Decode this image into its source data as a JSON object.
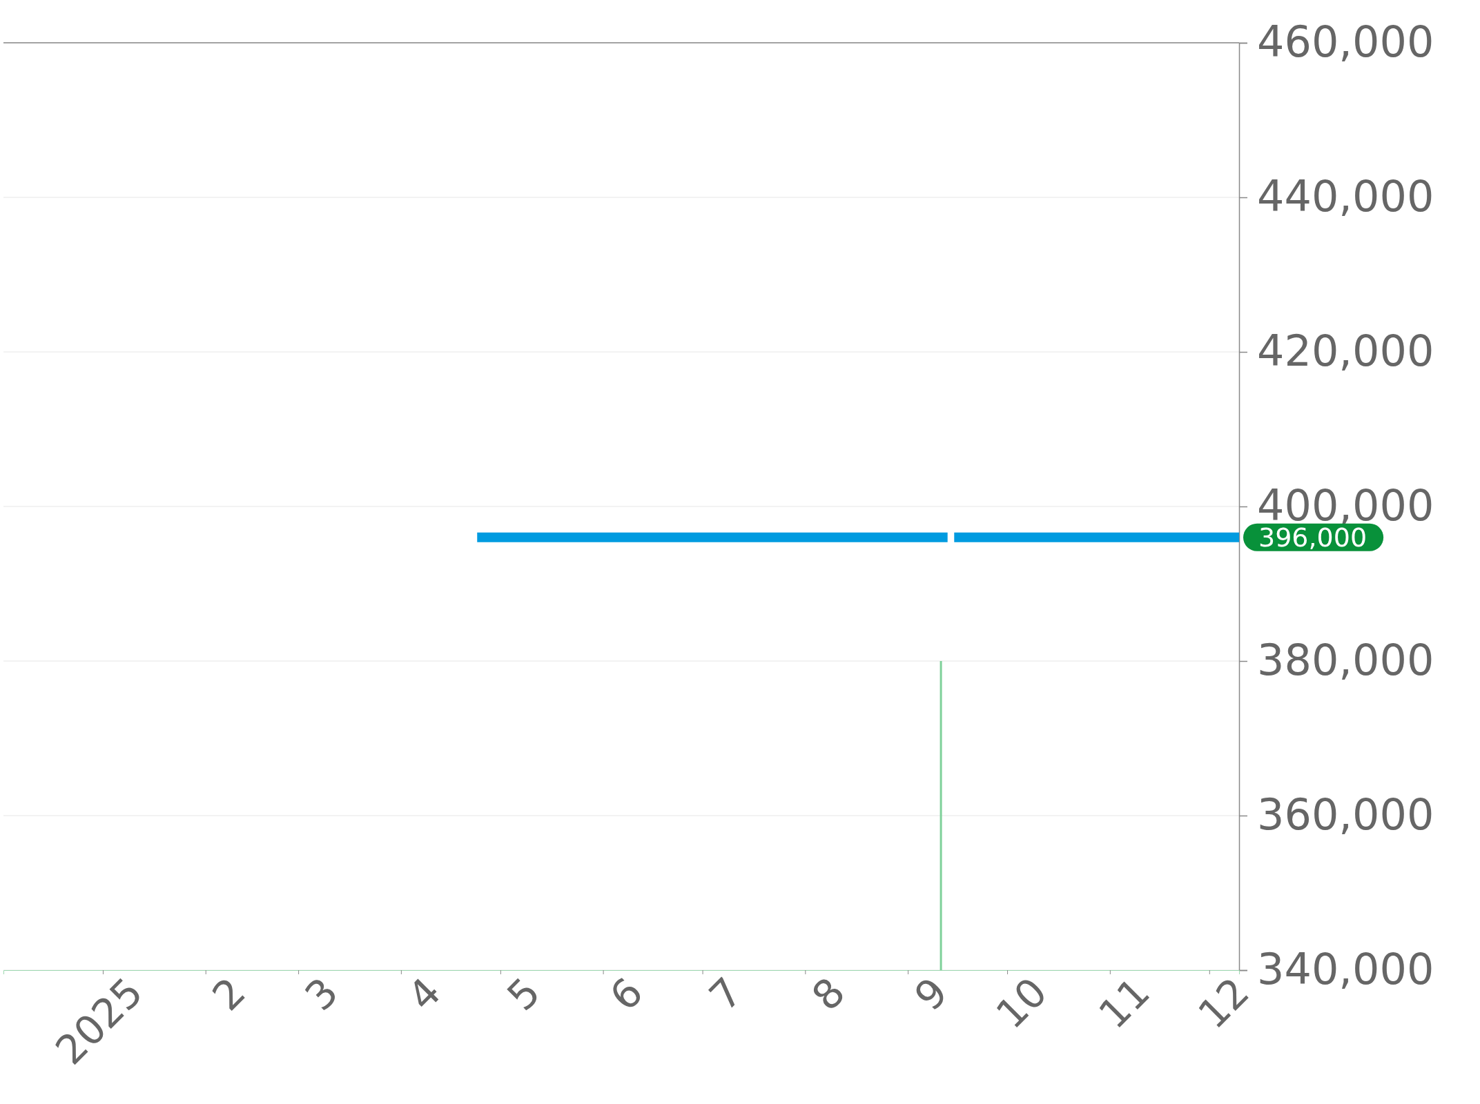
{
  "chart_data": {
    "type": "line",
    "xlim": [
      "2024-12-02",
      "2025-12-10"
    ],
    "xticks": [
      {
        "value": "2025-01-01",
        "label": "2025"
      },
      {
        "value": "2025-02-01",
        "label": "2"
      },
      {
        "value": "2025-03-01",
        "label": "3"
      },
      {
        "value": "2025-04-01",
        "label": "4"
      },
      {
        "value": "2025-05-01",
        "label": "5"
      },
      {
        "value": "2025-06-01",
        "label": "6"
      },
      {
        "value": "2025-07-01",
        "label": "7"
      },
      {
        "value": "2025-08-01",
        "label": "8"
      },
      {
        "value": "2025-09-01",
        "label": "9"
      },
      {
        "value": "2025-10-01",
        "label": "10"
      },
      {
        "value": "2025-11-01",
        "label": "11"
      },
      {
        "value": "2025-12-01",
        "label": "12"
      }
    ],
    "ylim": [
      340000,
      460000
    ],
    "yticks": [
      {
        "value": 340000,
        "label": "340,000"
      },
      {
        "value": 360000,
        "label": "360,000"
      },
      {
        "value": 380000,
        "label": "380,000"
      },
      {
        "value": 400000,
        "label": "400,000"
      },
      {
        "value": 420000,
        "label": "420,000"
      },
      {
        "value": 440000,
        "label": "440,000"
      },
      {
        "value": 460000,
        "label": "460,000"
      }
    ],
    "grid": "y",
    "series": [
      {
        "color": "#009be0",
        "x": [
          "2025-04-24",
          "2025-09-13",
          "2025-09-14",
          "2025-09-15",
          "2025-12-10"
        ],
        "values": [
          396000,
          396000,
          null,
          396000,
          396000
        ]
      },
      {
        "type": "bar",
        "color": "#7fd19a",
        "x": [
          "2025-09-11"
        ],
        "values": [
          380000
        ]
      }
    ],
    "annotations": [
      {
        "text": "396,000",
        "x": "2025-12-10",
        "y": 396000
      }
    ]
  }
}
